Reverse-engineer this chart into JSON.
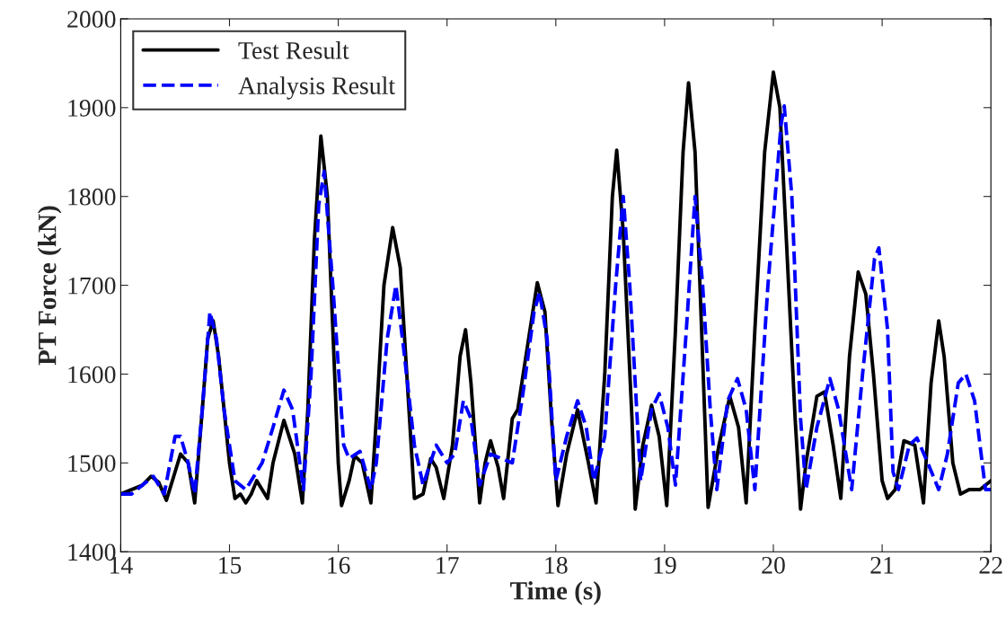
{
  "chart_data": {
    "type": "line",
    "xlabel": "Time (s)",
    "ylabel": "PT Force (kN)",
    "xlim": [
      14,
      22
    ],
    "xticks": [
      14,
      15,
      16,
      17,
      18,
      19,
      20,
      21,
      22
    ],
    "ylim": [
      1400,
      2000
    ],
    "yticks": [
      1400,
      1500,
      1600,
      1700,
      1800,
      1900,
      2000
    ],
    "grid": false,
    "legend": "top left",
    "series": [
      {
        "name": "Test Result",
        "color": "#000000",
        "line_style": "solid",
        "x": [
          14.0,
          14.2,
          14.28,
          14.35,
          14.42,
          14.5,
          14.55,
          14.62,
          14.68,
          14.75,
          14.8,
          14.85,
          14.9,
          15.0,
          15.05,
          15.1,
          15.15,
          15.2,
          15.25,
          15.3,
          15.35,
          15.4,
          15.5,
          15.6,
          15.67,
          15.72,
          15.78,
          15.84,
          15.9,
          15.95,
          16.0,
          16.03,
          16.1,
          16.15,
          16.22,
          16.3,
          16.35,
          16.42,
          16.5,
          16.57,
          16.65,
          16.7,
          16.78,
          16.85,
          16.9,
          16.97,
          17.05,
          17.12,
          17.17,
          17.22,
          17.3,
          17.35,
          17.4,
          17.47,
          17.52,
          17.6,
          17.65,
          17.75,
          17.83,
          17.9,
          17.96,
          18.02,
          18.1,
          18.2,
          18.3,
          18.37,
          18.45,
          18.52,
          18.56,
          18.62,
          18.7,
          18.73,
          18.8,
          18.88,
          18.95,
          19.02,
          19.1,
          19.17,
          19.22,
          19.28,
          19.34,
          19.4,
          19.5,
          19.6,
          19.68,
          19.75,
          19.83,
          19.92,
          20.0,
          20.06,
          20.12,
          20.2,
          20.25,
          20.3,
          20.4,
          20.47,
          20.55,
          20.62,
          20.7,
          20.78,
          20.85,
          20.92,
          21.0,
          21.05,
          21.12,
          21.2,
          21.3,
          21.38,
          21.45,
          21.52,
          21.57,
          21.65,
          21.72,
          21.8,
          21.9,
          22.0
        ],
        "values": [
          1465,
          1475,
          1485,
          1478,
          1458,
          1490,
          1510,
          1500,
          1455,
          1560,
          1640,
          1660,
          1620,
          1500,
          1460,
          1465,
          1455,
          1465,
          1480,
          1470,
          1460,
          1500,
          1548,
          1510,
          1455,
          1560,
          1750,
          1868,
          1800,
          1650,
          1500,
          1452,
          1480,
          1508,
          1500,
          1455,
          1550,
          1700,
          1765,
          1720,
          1560,
          1460,
          1465,
          1505,
          1495,
          1460,
          1520,
          1620,
          1650,
          1590,
          1455,
          1500,
          1525,
          1495,
          1460,
          1550,
          1560,
          1640,
          1703,
          1670,
          1550,
          1452,
          1510,
          1560,
          1500,
          1455,
          1600,
          1800,
          1852,
          1760,
          1550,
          1448,
          1520,
          1565,
          1530,
          1452,
          1650,
          1850,
          1928,
          1850,
          1650,
          1450,
          1520,
          1575,
          1540,
          1455,
          1650,
          1850,
          1940,
          1900,
          1750,
          1550,
          1448,
          1500,
          1575,
          1580,
          1520,
          1460,
          1620,
          1715,
          1690,
          1600,
          1480,
          1460,
          1470,
          1525,
          1520,
          1455,
          1590,
          1660,
          1620,
          1500,
          1465,
          1470,
          1470,
          1480
        ]
      },
      {
        "name": "Analysis Result",
        "color": "#0000ff",
        "line_style": "dashed",
        "x": [
          14.0,
          14.1,
          14.2,
          14.3,
          14.4,
          14.5,
          14.55,
          14.62,
          14.68,
          14.75,
          14.82,
          14.88,
          14.95,
          15.05,
          15.15,
          15.3,
          15.4,
          15.5,
          15.58,
          15.68,
          15.75,
          15.82,
          15.87,
          15.95,
          16.05,
          16.1,
          16.2,
          16.3,
          16.35,
          16.45,
          16.53,
          16.6,
          16.7,
          16.78,
          16.9,
          17.0,
          17.07,
          17.15,
          17.22,
          17.3,
          17.4,
          17.5,
          17.6,
          17.7,
          17.8,
          17.85,
          17.92,
          18.0,
          18.1,
          18.2,
          18.28,
          18.35,
          18.45,
          18.55,
          18.62,
          18.68,
          18.78,
          18.88,
          18.95,
          19.03,
          19.1,
          19.2,
          19.28,
          19.35,
          19.42,
          19.48,
          19.58,
          19.67,
          19.75,
          19.83,
          19.95,
          20.07,
          20.1,
          20.17,
          20.25,
          20.3,
          20.4,
          20.52,
          20.6,
          20.72,
          20.82,
          20.93,
          20.97,
          21.05,
          21.1,
          21.15,
          21.25,
          21.32,
          21.42,
          21.52,
          21.6,
          21.7,
          21.77,
          21.85,
          21.95,
          22.0
        ],
        "values": [
          1465,
          1465,
          1475,
          1485,
          1465,
          1530,
          1530,
          1500,
          1465,
          1560,
          1670,
          1640,
          1560,
          1480,
          1470,
          1500,
          1540,
          1582,
          1560,
          1470,
          1600,
          1790,
          1828,
          1700,
          1520,
          1505,
          1513,
          1470,
          1500,
          1640,
          1700,
          1630,
          1520,
          1475,
          1520,
          1500,
          1510,
          1570,
          1550,
          1475,
          1510,
          1505,
          1500,
          1580,
          1670,
          1692,
          1640,
          1480,
          1530,
          1570,
          1540,
          1480,
          1530,
          1700,
          1800,
          1700,
          1480,
          1560,
          1578,
          1540,
          1475,
          1650,
          1800,
          1700,
          1560,
          1470,
          1570,
          1595,
          1560,
          1470,
          1700,
          1880,
          1902,
          1800,
          1550,
          1470,
          1540,
          1595,
          1560,
          1470,
          1600,
          1730,
          1742,
          1650,
          1490,
          1470,
          1520,
          1528,
          1500,
          1470,
          1510,
          1590,
          1600,
          1570,
          1470,
          1470
        ]
      }
    ]
  }
}
